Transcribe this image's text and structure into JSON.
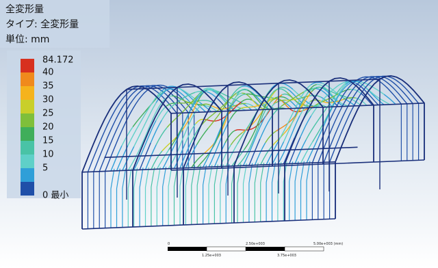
{
  "header": {
    "title": "全変形量",
    "type_line": "タイプ: 全変形量",
    "unit_line": "単位: mm"
  },
  "legend": {
    "labels": [
      "84.172",
      "40",
      "35",
      "30",
      "25",
      "20",
      "15",
      "10",
      "5",
      "0 最小"
    ]
  },
  "scale_bar": {
    "top_labels": [
      "0",
      "2.50e+003",
      "5.00e+003 (mm)"
    ],
    "bottom_labels": [
      "1.25e+003",
      "3.75e+003"
    ]
  }
}
